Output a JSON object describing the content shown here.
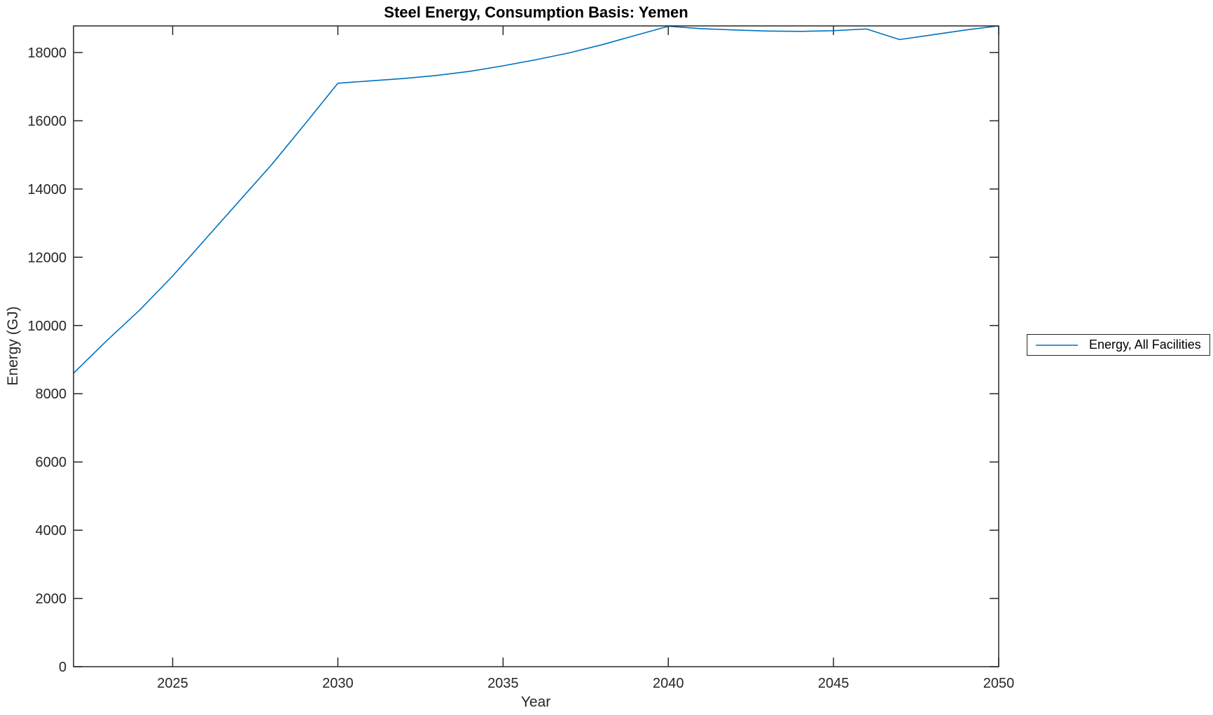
{
  "chart_data": {
    "type": "line",
    "title": "Steel Energy, Consumption Basis: Yemen",
    "xlabel": "Year",
    "ylabel": "Energy (GJ)",
    "xlim": [
      2022,
      2050
    ],
    "ylim": [
      0,
      18780
    ],
    "xticks": [
      2025,
      2030,
      2035,
      2040,
      2045,
      2050
    ],
    "yticks": [
      0,
      2000,
      4000,
      6000,
      8000,
      10000,
      12000,
      14000,
      16000,
      18000
    ],
    "grid": false,
    "legend_position": "outside-right",
    "series": [
      {
        "name": "Energy, All Facilities",
        "color": "#0072BD",
        "x": [
          2022,
          2023,
          2024,
          2025,
          2026,
          2027,
          2028,
          2029,
          2030,
          2031,
          2032,
          2033,
          2034,
          2035,
          2036,
          2037,
          2038,
          2039,
          2040,
          2041,
          2042,
          2043,
          2044,
          2045,
          2046,
          2047,
          2048,
          2049,
          2050
        ],
        "values": [
          8600,
          9550,
          10450,
          11450,
          12540,
          13630,
          14720,
          15900,
          17100,
          17170,
          17240,
          17330,
          17450,
          17610,
          17790,
          17990,
          18230,
          18500,
          18770,
          18700,
          18660,
          18630,
          18620,
          18640,
          18690,
          18380,
          18520,
          18660,
          18780
        ]
      }
    ]
  },
  "style": {
    "axis_color": "#262626",
    "tick_label_color": "#262626",
    "title_color": "#000000",
    "background_color": "#ffffff"
  }
}
